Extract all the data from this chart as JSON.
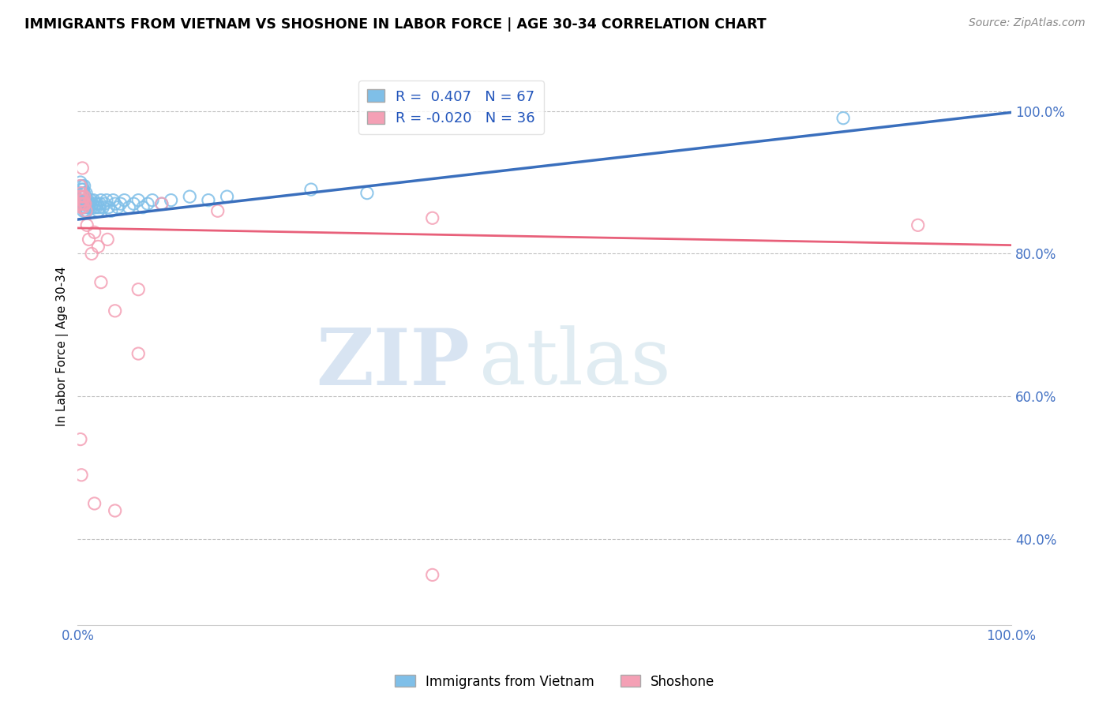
{
  "title": "IMMIGRANTS FROM VIETNAM VS SHOSHONE IN LABOR FORCE | AGE 30-34 CORRELATION CHART",
  "source": "Source: ZipAtlas.com",
  "ylabel": "In Labor Force | Age 30-34",
  "xlim": [
    0.0,
    1.0
  ],
  "ylim": [
    0.28,
    1.06
  ],
  "x_ticks": [
    0.0,
    0.2,
    0.4,
    0.6,
    0.8,
    1.0
  ],
  "y_ticks": [
    0.4,
    0.6,
    0.8,
    1.0
  ],
  "y_tick_labels": [
    "40.0%",
    "60.0%",
    "80.0%",
    "100.0%"
  ],
  "legend_r1": "R =  0.407",
  "legend_n1": "N = 67",
  "legend_r2": "R = -0.020",
  "legend_n2": "N = 36",
  "blue_color": "#7fbfe8",
  "pink_color": "#f4a0b5",
  "blue_line_color": "#3a6fbd",
  "pink_line_color": "#e8607a",
  "watermark_zip": "ZIP",
  "watermark_atlas": "atlas",
  "blue_scatter_x": [
    0.002,
    0.003,
    0.003,
    0.003,
    0.003,
    0.004,
    0.004,
    0.004,
    0.005,
    0.005,
    0.005,
    0.005,
    0.006,
    0.006,
    0.006,
    0.006,
    0.007,
    0.007,
    0.007,
    0.007,
    0.008,
    0.008,
    0.008,
    0.009,
    0.009,
    0.009,
    0.01,
    0.01,
    0.011,
    0.012,
    0.013,
    0.014,
    0.015,
    0.016,
    0.017,
    0.018,
    0.019,
    0.02,
    0.021,
    0.022,
    0.023,
    0.024,
    0.025,
    0.027,
    0.029,
    0.031,
    0.033,
    0.036,
    0.038,
    0.04,
    0.043,
    0.046,
    0.05,
    0.055,
    0.06,
    0.065,
    0.07,
    0.075,
    0.08,
    0.09,
    0.1,
    0.12,
    0.14,
    0.16,
    0.25,
    0.31,
    0.82
  ],
  "blue_scatter_y": [
    0.87,
    0.875,
    0.885,
    0.895,
    0.9,
    0.87,
    0.88,
    0.89,
    0.865,
    0.875,
    0.885,
    0.895,
    0.86,
    0.87,
    0.88,
    0.89,
    0.865,
    0.875,
    0.885,
    0.895,
    0.86,
    0.87,
    0.88,
    0.865,
    0.875,
    0.885,
    0.86,
    0.87,
    0.875,
    0.865,
    0.87,
    0.875,
    0.865,
    0.87,
    0.875,
    0.865,
    0.87,
    0.865,
    0.87,
    0.86,
    0.865,
    0.87,
    0.875,
    0.865,
    0.87,
    0.875,
    0.865,
    0.86,
    0.875,
    0.87,
    0.865,
    0.87,
    0.875,
    0.865,
    0.87,
    0.875,
    0.865,
    0.87,
    0.875,
    0.87,
    0.875,
    0.88,
    0.875,
    0.88,
    0.89,
    0.885,
    0.99
  ],
  "pink_scatter_x": [
    0.002,
    0.002,
    0.003,
    0.003,
    0.003,
    0.004,
    0.004,
    0.004,
    0.005,
    0.005,
    0.005,
    0.006,
    0.006,
    0.007,
    0.007,
    0.008,
    0.009,
    0.01,
    0.012,
    0.015,
    0.018,
    0.022,
    0.025,
    0.032,
    0.04,
    0.065,
    0.09,
    0.15,
    0.38,
    0.9,
    0.003,
    0.004,
    0.018,
    0.04,
    0.065,
    0.38
  ],
  "pink_scatter_y": [
    0.87,
    0.88,
    0.87,
    0.88,
    0.895,
    0.865,
    0.875,
    0.885,
    0.87,
    0.88,
    0.92,
    0.865,
    0.875,
    0.87,
    0.88,
    0.87,
    0.86,
    0.84,
    0.82,
    0.8,
    0.83,
    0.81,
    0.76,
    0.82,
    0.72,
    0.75,
    0.87,
    0.86,
    0.85,
    0.84,
    0.54,
    0.49,
    0.45,
    0.44,
    0.66,
    0.35
  ],
  "blue_trend_y_start": 0.848,
  "blue_trend_y_end": 0.998,
  "pink_trend_y_start": 0.836,
  "pink_trend_y_end": 0.812
}
